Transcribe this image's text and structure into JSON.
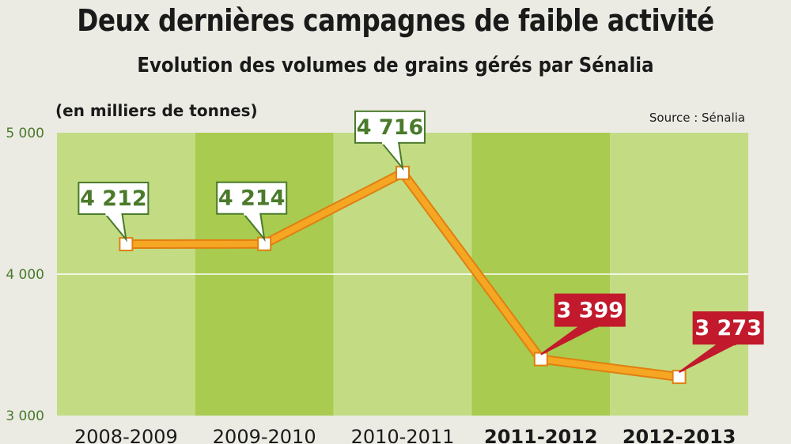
{
  "title": "Deux dernières campagnes de faible activité",
  "subtitle": "Evolution des volumes de grains gérés par Sénalia",
  "unit_note": "(en milliers de tonnes)",
  "source": "Source : Sénalia",
  "colors": {
    "band_light": "#c3dc84",
    "band_dark": "#a8cb50",
    "line": "#f5a623",
    "line_edge": "#e07f10",
    "label_normal": "#4a7a2a",
    "label_highlight": "#c2192c",
    "gridline": "#ffffff"
  },
  "chart_data": {
    "type": "line",
    "title": "Evolution des volumes de grains gérés par Sénalia",
    "ylabel": "(en milliers de tonnes)",
    "xlabel": "",
    "categories": [
      "2008-2009",
      "2009-2010",
      "2010-2011",
      "2011-2012",
      "2012-2013"
    ],
    "highlighted_categories": [
      "2011-2012",
      "2012-2013"
    ],
    "series": [
      {
        "values": [
          4212,
          4214,
          4716,
          3399,
          3273
        ],
        "labels": [
          "4 212",
          "4 214",
          "4 716",
          "3 399",
          "3 273"
        ]
      }
    ],
    "yticks": [
      3000,
      4000,
      5000
    ],
    "ytick_labels": [
      "3 000",
      "4 000",
      "5 000"
    ],
    "ylim": [
      3000,
      5000
    ],
    "grid": true,
    "legend": "none"
  }
}
